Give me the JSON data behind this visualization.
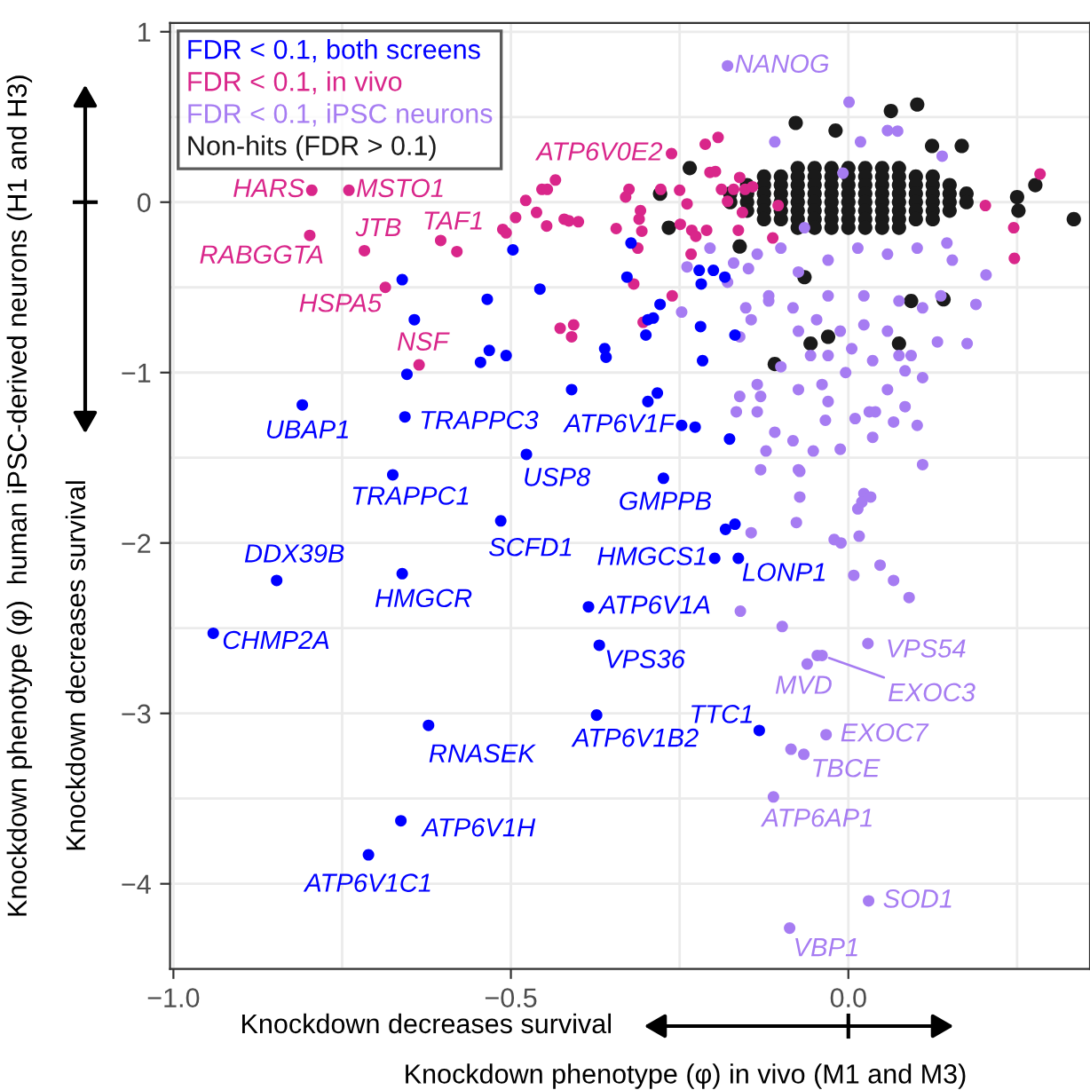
{
  "chart_data": {
    "type": "scatter",
    "xlabel": "Knockdown phenotype (φ) in vivo (M1 and M3)",
    "ylabel": "Knockdown phenotype (φ)  human iPSC-derived neurons (H1 and H3)",
    "xlim": [
      -1.005,
      0.358
    ],
    "ylim": [
      -4.5,
      1.052
    ],
    "xticks": [
      {
        "value": -1.0,
        "label": "−1.0"
      },
      {
        "value": -0.5,
        "label": "−0.5"
      },
      {
        "value": 0.0,
        "label": "0.0"
      }
    ],
    "yticks": [
      {
        "value": -4,
        "label": "−4"
      },
      {
        "value": -3,
        "label": "−3"
      },
      {
        "value": -2,
        "label": "−2"
      },
      {
        "value": -1,
        "label": "−1"
      },
      0,
      1
    ],
    "grid": true,
    "legend": "top left",
    "marker": "circle",
    "series": [
      {
        "name": "FDR < 0.1, both screens",
        "color": "#0000ff",
        "x": [
          -0.809,
          -0.661,
          -0.643,
          -0.654,
          -0.657,
          -0.497,
          -0.457,
          -0.535,
          -0.532,
          -0.545,
          -0.507,
          -0.41,
          -0.361,
          -0.359,
          -0.477,
          -0.675,
          -0.322,
          -0.328,
          -0.279,
          -0.289,
          -0.297,
          -0.3,
          -0.221,
          -0.2,
          -0.183,
          -0.218,
          -0.219,
          -0.168,
          -0.216,
          -0.283,
          -0.297,
          -0.247,
          -0.227,
          -0.176,
          -0.274,
          -0.515,
          -0.847,
          -0.661,
          -0.941,
          -0.385,
          -0.369,
          -0.373,
          -0.622,
          -0.663,
          -0.711,
          -0.182,
          -0.168,
          -0.198,
          -0.163,
          -0.132
        ],
        "values": [
          -1.19,
          -0.455,
          -0.69,
          -1.01,
          -1.26,
          -0.28,
          -0.51,
          -0.57,
          -0.87,
          -0.94,
          -0.9,
          -1.1,
          -0.86,
          -0.91,
          -1.48,
          -1.6,
          -0.24,
          -0.44,
          -0.6,
          -0.68,
          -0.69,
          -0.78,
          -0.4,
          -0.4,
          -0.44,
          -0.48,
          -0.73,
          -0.78,
          -0.93,
          -1.12,
          -1.17,
          -1.31,
          -1.32,
          -1.39,
          -1.62,
          -1.87,
          -2.22,
          -2.18,
          -2.53,
          -2.375,
          -2.6,
          -3.01,
          -3.07,
          -3.63,
          -3.83,
          -1.92,
          -1.89,
          -2.09,
          -2.09,
          -3.1
        ]
      },
      {
        "name": "FDR < 0.1, in vivo",
        "color": "#d9268a",
        "x": [
          -0.795,
          -0.74,
          -0.798,
          -0.717,
          -0.604,
          -0.58,
          -0.686,
          -0.636,
          -0.512,
          -0.507,
          -0.493,
          -0.478,
          -0.462,
          -0.447,
          -0.454,
          -0.446,
          -0.434,
          -0.421,
          -0.414,
          -0.4,
          -0.427,
          -0.407,
          -0.41,
          -0.325,
          -0.33,
          -0.344,
          -0.308,
          -0.31,
          -0.306,
          -0.312,
          -0.318,
          -0.261,
          -0.304,
          -0.262,
          -0.212,
          -0.193,
          -0.278,
          -0.25,
          -0.239,
          -0.232,
          -0.233,
          -0.249,
          -0.205,
          -0.197,
          -0.188,
          -0.179,
          -0.17,
          -0.161,
          -0.153,
          -0.142,
          -0.157,
          -0.163,
          -0.226,
          -0.21,
          -0.104,
          -0.112,
          0.284,
          0.203,
          0.245,
          0.246
        ],
        "values": [
          0.07,
          0.07,
          -0.195,
          -0.285,
          -0.225,
          -0.29,
          -0.5,
          -0.955,
          -0.16,
          -0.18,
          -0.09,
          0.01,
          -0.06,
          -0.14,
          0.075,
          0.075,
          0.13,
          -0.1,
          -0.11,
          -0.115,
          -0.74,
          -0.72,
          -0.79,
          0.075,
          0.03,
          -0.155,
          -0.05,
          -0.1,
          -0.17,
          -0.27,
          -0.48,
          -0.55,
          -0.705,
          0.285,
          0.34,
          0.38,
          0.075,
          0.07,
          -0.01,
          -0.165,
          -0.305,
          -0.13,
          0.175,
          0.18,
          0.075,
          0.005,
          0.075,
          0.145,
          0.075,
          0.09,
          -0.06,
          -0.165,
          -0.2,
          -0.165,
          -0.02,
          -0.21,
          0.165,
          -0.02,
          -0.15,
          -0.33
        ]
      },
      {
        "name": "FDR < 0.1, iPSC neurons",
        "color": "#a67cf2",
        "x": [
          -0.179,
          0.001,
          -0.109,
          0.018,
          0.058,
          0.073,
          0.139,
          -0.008,
          -0.065,
          -0.1,
          -0.135,
          -0.17,
          -0.205,
          -0.239,
          -0.148,
          -0.179,
          -0.247,
          -0.152,
          -0.118,
          -0.074,
          -0.03,
          0.014,
          0.058,
          0.102,
          0.146,
          0.154,
          0.137,
          0.189,
          0.204,
          0.176,
          0.132,
          0.093,
          0.075,
          0.084,
          0.058,
          0.023,
          -0.012,
          -0.047,
          -0.074,
          -0.056,
          -0.03,
          0.005,
          0.036,
          -0.004,
          -0.039,
          -0.074,
          -0.1,
          -0.135,
          -0.13,
          -0.161,
          -0.161,
          -0.144,
          -0.118,
          -0.082,
          -0.03,
          0.023,
          0.075,
          0.11,
          0.11,
          0.058,
          0.04,
          0.031,
          0.067,
          0.102,
          0.11,
          0.084,
          0.01,
          -0.03,
          -0.034,
          -0.012,
          -0.052,
          -0.074,
          -0.122,
          -0.13,
          -0.109,
          -0.082,
          -0.135,
          -0.166,
          0.036,
          0.023,
          -0.072,
          -0.072,
          -0.077,
          -0.144,
          -0.021,
          -0.011,
          0.016,
          0.014,
          0.02,
          0.033,
          0.008,
          0.047,
          0.067,
          0.09,
          -0.16,
          -0.098,
          0.029,
          -0.061,
          -0.046,
          -0.039,
          -0.033,
          -0.066,
          -0.085,
          -0.111,
          0.03,
          -0.087
        ],
        "values": [
          0.8,
          0.587,
          0.354,
          0.354,
          0.42,
          0.417,
          0.27,
          0.17,
          -0.15,
          -0.27,
          -0.305,
          -0.357,
          -0.27,
          -0.38,
          -0.39,
          -0.47,
          -0.645,
          -0.62,
          -0.55,
          -0.41,
          -0.34,
          -0.27,
          -0.305,
          -0.27,
          -0.24,
          -0.34,
          -0.55,
          -0.6,
          -0.427,
          -0.83,
          -0.82,
          -0.9,
          -0.9,
          -0.99,
          -0.757,
          -0.72,
          -0.757,
          -0.69,
          -0.757,
          -0.9,
          -0.9,
          -0.86,
          -0.93,
          -1.0,
          -1.07,
          -1.1,
          -0.966,
          -1.07,
          -1.14,
          -1.14,
          -0.79,
          -0.69,
          -0.58,
          -0.62,
          -0.55,
          -0.55,
          -0.58,
          -0.62,
          -1.03,
          -1.1,
          -1.23,
          -1.23,
          -1.29,
          -1.31,
          -1.54,
          -1.2,
          -1.27,
          -1.17,
          -1.28,
          -1.45,
          -1.46,
          -1.57,
          -1.46,
          -1.57,
          -1.35,
          -1.4,
          -1.23,
          -1.23,
          -1.38,
          -1.71,
          -1.58,
          -1.73,
          -1.88,
          -1.94,
          -1.98,
          -2.0,
          -1.96,
          -1.8,
          -1.76,
          -1.73,
          -2.19,
          -2.13,
          -2.22,
          -2.32,
          -2.4,
          -2.49,
          -2.59,
          -2.71,
          -2.66,
          -2.66,
          -3.125,
          -3.24,
          -3.21,
          -3.49,
          -4.1,
          -4.26
        ]
      },
      {
        "name": "Non-hits (FDR > 0.1)",
        "color": "#1a1a1a",
        "x": [
          -0.075,
          -0.05,
          -0.025,
          0,
          0.025,
          0.05,
          0.075,
          -0.125,
          -0.1,
          -0.075,
          -0.05,
          -0.025,
          0,
          0.025,
          0.05,
          0.075,
          0.1,
          0.125,
          -0.15,
          -0.125,
          -0.1,
          -0.075,
          -0.05,
          -0.025,
          0,
          0.025,
          0.05,
          0.075,
          0.1,
          0.125,
          0.15,
          -0.175,
          -0.15,
          -0.125,
          -0.1,
          -0.075,
          -0.05,
          -0.025,
          0,
          0.025,
          0.05,
          0.075,
          0.1,
          0.125,
          0.15,
          0.175,
          -0.175,
          -0.15,
          -0.125,
          -0.1,
          -0.075,
          -0.05,
          -0.025,
          0,
          0.025,
          0.05,
          0.075,
          0.1,
          0.125,
          0.15,
          0.175,
          -0.15,
          -0.125,
          -0.1,
          -0.075,
          -0.05,
          -0.025,
          0,
          0.025,
          0.05,
          0.075,
          0.1,
          0.125,
          0.15,
          -0.125,
          -0.1,
          -0.075,
          -0.05,
          -0.025,
          0,
          0.025,
          0.05,
          0.075,
          0.1,
          0.125,
          -0.075,
          -0.05,
          -0.025,
          0,
          0.025,
          0.05,
          0.075,
          0.102,
          0.063,
          -0.078,
          -0.019,
          0.334,
          0.277,
          0.25,
          0.252,
          -0.279,
          -0.266,
          -0.109,
          -0.056,
          0.075,
          0.093,
          0.141,
          -0.03,
          -0.065,
          -0.161,
          0.168,
          0.124,
          -0.235
        ],
        "values": [
          0.2,
          0.2,
          0.2,
          0.2,
          0.2,
          0.2,
          0.2,
          0.15,
          0.15,
          0.15,
          0.15,
          0.15,
          0.15,
          0.15,
          0.15,
          0.15,
          0.15,
          0.15,
          0.1,
          0.1,
          0.1,
          0.1,
          0.1,
          0.1,
          0.1,
          0.1,
          0.1,
          0.1,
          0.1,
          0.1,
          0.1,
          0.05,
          0.05,
          0.05,
          0.05,
          0.05,
          0.05,
          0.05,
          0.05,
          0.05,
          0.05,
          0.05,
          0.05,
          0.05,
          0.05,
          0.05,
          0,
          0,
          0,
          0,
          0,
          0,
          0,
          0,
          0,
          0,
          0,
          0,
          0,
          0,
          0,
          -0.05,
          -0.05,
          -0.05,
          -0.05,
          -0.05,
          -0.05,
          -0.05,
          -0.05,
          -0.05,
          -0.05,
          -0.05,
          -0.05,
          -0.05,
          -0.1,
          -0.1,
          -0.1,
          -0.1,
          -0.1,
          -0.1,
          -0.1,
          -0.1,
          -0.1,
          -0.1,
          -0.1,
          -0.15,
          -0.15,
          -0.15,
          -0.15,
          -0.15,
          -0.15,
          -0.15,
          0.573,
          0.535,
          0.465,
          0.42,
          -0.1,
          0.1,
          0.03,
          -0.05,
          0.05,
          -0.15,
          -0.95,
          -0.83,
          -0.83,
          -0.58,
          -0.57,
          -0.79,
          -0.44,
          -0.26,
          0.33,
          0.33,
          0.2
        ]
      }
    ],
    "annotations": [
      {
        "text": "HARS",
        "x": -0.795,
        "y": 0.07
      },
      {
        "text": "MSTO1",
        "x": -0.74,
        "y": 0.07
      },
      {
        "text": "RABGGTA",
        "x": -0.798,
        "y": -0.195
      },
      {
        "text": "JTB",
        "x": -0.717,
        "y": -0.285
      },
      {
        "text": "TAF1",
        "x": -0.604,
        "y": -0.225
      },
      {
        "text": "HSPA5",
        "x": -0.686,
        "y": -0.5
      },
      {
        "text": "NSF",
        "x": -0.636,
        "y": -0.955
      },
      {
        "text": "ATP6V0E2",
        "x": -0.262,
        "y": 0.285
      },
      {
        "text": "NANOG",
        "x": -0.179,
        "y": 0.8
      },
      {
        "text": "UBAP1",
        "x": -0.809,
        "y": -1.19
      },
      {
        "text": "TRAPPC3",
        "x": -0.657,
        "y": -1.26
      },
      {
        "text": "ATP6V1F",
        "x": -0.247,
        "y": -1.31
      },
      {
        "text": "USP8",
        "x": -0.477,
        "y": -1.48
      },
      {
        "text": "TRAPPC1",
        "x": -0.675,
        "y": -1.6
      },
      {
        "text": "GMPPB",
        "x": -0.274,
        "y": -1.62
      },
      {
        "text": "SCFD1",
        "x": -0.515,
        "y": -1.87
      },
      {
        "text": "HMGCS1",
        "x": -0.198,
        "y": -2.09
      },
      {
        "text": "LONP1",
        "x": -0.163,
        "y": -2.09
      },
      {
        "text": "DDX39B",
        "x": -0.847,
        "y": -2.22
      },
      {
        "text": "HMGCR",
        "x": -0.661,
        "y": -2.18
      },
      {
        "text": "CHMP2A",
        "x": -0.941,
        "y": -2.53
      },
      {
        "text": "ATP6V1A",
        "x": -0.385,
        "y": -2.375
      },
      {
        "text": "VPS36",
        "x": -0.369,
        "y": -2.6
      },
      {
        "text": "ATP6V1B2",
        "x": -0.373,
        "y": -3.01
      },
      {
        "text": "RNASEK",
        "x": -0.622,
        "y": -3.07
      },
      {
        "text": "TTC1",
        "x": -0.132,
        "y": -3.1
      },
      {
        "text": "ATP6V1H",
        "x": -0.663,
        "y": -3.63
      },
      {
        "text": "ATP6V1C1",
        "x": -0.711,
        "y": -3.83
      },
      {
        "text": "VPS54",
        "x": 0.029,
        "y": -2.59
      },
      {
        "text": "MVD",
        "x": -0.061,
        "y": -2.71
      },
      {
        "text": "EXOC3",
        "x": -0.039,
        "y": -2.66
      },
      {
        "text": "EXOC7",
        "x": -0.033,
        "y": -3.125
      },
      {
        "text": "TBCE",
        "x": -0.066,
        "y": -3.24
      },
      {
        "text": "ATP6AP1",
        "x": -0.111,
        "y": -3.49
      },
      {
        "text": "SOD1",
        "x": 0.03,
        "y": -4.1
      },
      {
        "text": "VBP1",
        "x": -0.087,
        "y": -4.26
      },
      "Knockdown decreases survival",
      "Knockdown decreases survival"
    ]
  }
}
